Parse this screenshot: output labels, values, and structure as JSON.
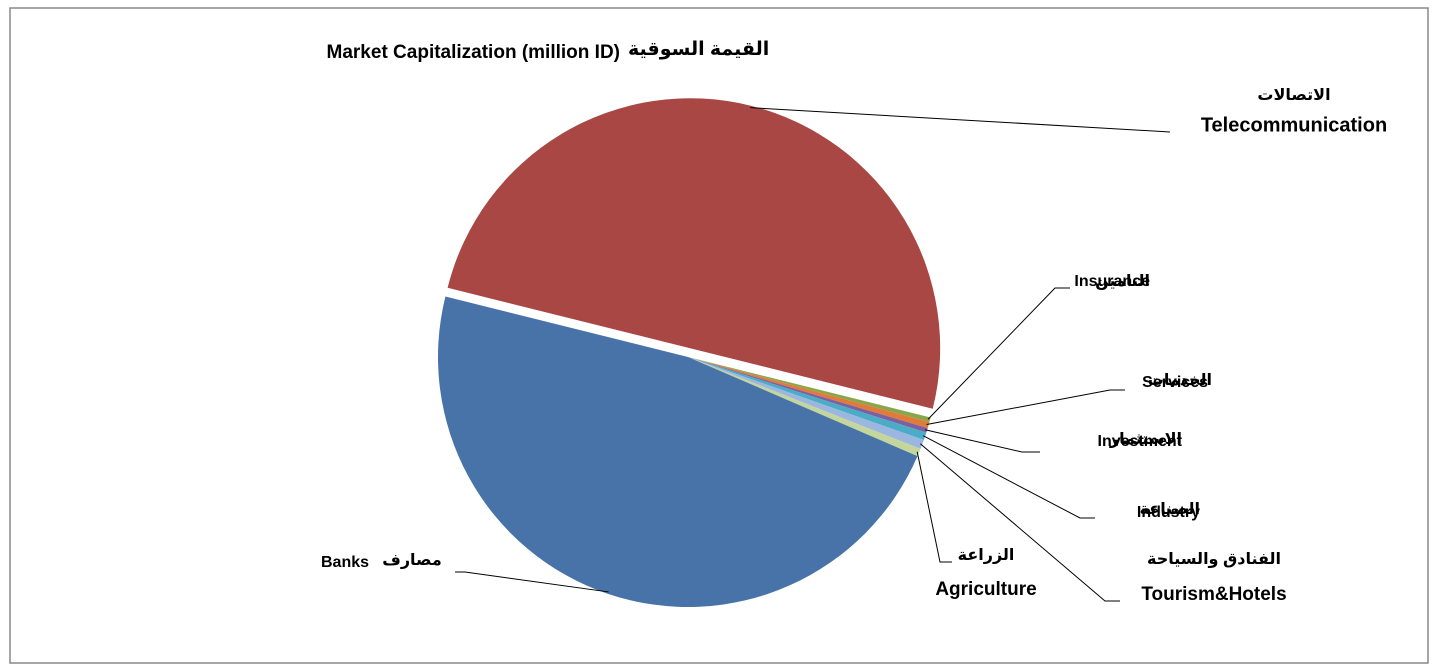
{
  "chart_data": {
    "type": "pie",
    "title": "Market Capitalization (million ID)",
    "title_ar": "القيمة السوقية",
    "categories": [
      "Telecommunication",
      "Insurance",
      "Services",
      "Investment",
      "Industry",
      "Tourism&Hotels",
      "Agriculture",
      "Banks"
    ],
    "categories_ar": [
      "الاتصالات",
      "التامين",
      "الخدمات",
      "الاستثمار",
      "الصناعة",
      "الفنادق والسياحة",
      "الزراعة",
      "مصارف"
    ],
    "values": [
      50.0,
      0.3,
      0.4,
      0.3,
      0.5,
      0.6,
      0.5,
      47.4
    ],
    "colors": [
      "#a84744",
      "#8aa64a",
      "#e07b39",
      "#7d60a0",
      "#4aacc6",
      "#9bb7e0",
      "#c3d69b",
      "#4773a8"
    ],
    "exploded": "Telecommunication"
  }
}
